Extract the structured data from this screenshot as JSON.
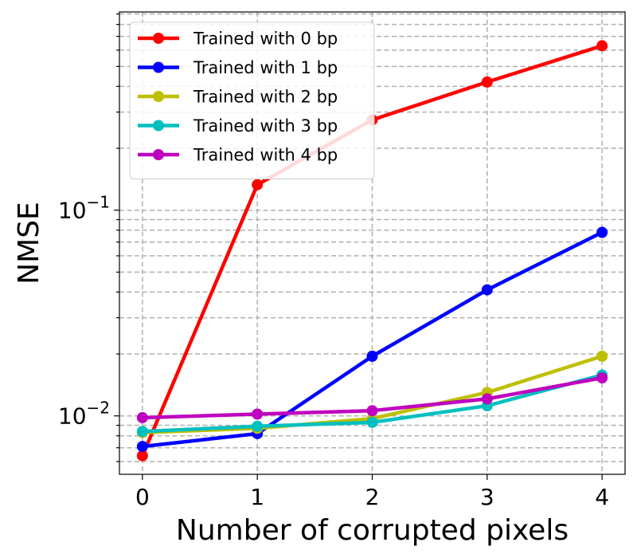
{
  "chart_data": {
    "type": "line",
    "title": "",
    "xlabel": "Number of corrupted pixels",
    "ylabel": "NMSE",
    "y_scale": "log",
    "xlim": [
      -0.2,
      4.2
    ],
    "ylim": [
      0.0052,
      0.92
    ],
    "x": [
      0,
      1,
      2,
      3,
      4
    ],
    "x_ticks": [
      "0",
      "1",
      "2",
      "3",
      "4"
    ],
    "y_ticks": [
      {
        "value": 0.01,
        "base": "10",
        "exp": "−2"
      },
      {
        "value": 0.1,
        "base": "10",
        "exp": "−1"
      }
    ],
    "grid": true,
    "grid_style": "dashed, major and minor",
    "legend_position": "upper-left",
    "series": [
      {
        "name": "Trained with 0 bp",
        "color": "#ff0000",
        "values": [
          0.0064,
          0.133,
          0.275,
          0.42,
          0.63
        ]
      },
      {
        "name": "Trained with 1 bp",
        "color": "#0000ff",
        "values": [
          0.0071,
          0.0082,
          0.0195,
          0.041,
          0.078
        ]
      },
      {
        "name": "Trained with 2 bp",
        "color": "#bfbf00",
        "values": [
          0.0083,
          0.0087,
          0.0097,
          0.013,
          0.0195
        ]
      },
      {
        "name": "Trained with 3 bp",
        "color": "#00bfbf",
        "values": [
          0.0084,
          0.0089,
          0.0093,
          0.0112,
          0.0158
        ]
      },
      {
        "name": "Trained with 4 bp",
        "color": "#bf00bf",
        "values": [
          0.0098,
          0.0102,
          0.0106,
          0.0121,
          0.0153
        ]
      }
    ]
  }
}
